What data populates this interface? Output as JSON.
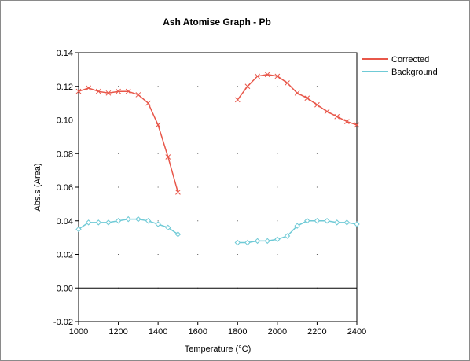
{
  "chart_data": {
    "type": "line",
    "title": "Ash Atomise Graph - Pb",
    "xlabel": "Temperature (°C)",
    "ylabel": "Abs.s (Area)",
    "xlim": [
      1000,
      2400
    ],
    "ylim": [
      -0.02,
      0.14
    ],
    "xticks": [
      1000,
      1200,
      1400,
      1600,
      1800,
      2000,
      2200,
      2400
    ],
    "xtick_labels": [
      "1000",
      "1200",
      "1400",
      "1600",
      "1800",
      "2000",
      "2200",
      "2400"
    ],
    "yticks": [
      -0.02,
      0,
      0.02,
      0.04,
      0.06,
      0.08,
      0.1,
      0.12,
      0.14
    ],
    "ytick_labels": [
      "-0.02",
      "0.00",
      "0.02",
      "0.04",
      "0.06",
      "0.08",
      "0.10",
      "0.12",
      "0.14"
    ],
    "grid": "dotted points",
    "legend_position": "right",
    "series": [
      {
        "name": "Corrected",
        "color": "#e8574a",
        "marker": "x",
        "segments": [
          {
            "x": [
              1000,
              1050,
              1100,
              1150,
              1200,
              1250,
              1300,
              1350,
              1400,
              1450,
              1500
            ],
            "y": [
              0.117,
              0.119,
              0.117,
              0.116,
              0.117,
              0.117,
              0.115,
              0.11,
              0.097,
              0.078,
              0.057
            ]
          },
          {
            "x": [
              1800,
              1850,
              1900,
              1950,
              2000,
              2050,
              2100,
              2150,
              2200,
              2250,
              2300,
              2350,
              2400
            ],
            "y": [
              0.112,
              0.12,
              0.126,
              0.127,
              0.126,
              0.122,
              0.116,
              0.113,
              0.109,
              0.105,
              0.102,
              0.099,
              0.097
            ]
          }
        ]
      },
      {
        "name": "Background",
        "color": "#6fcad6",
        "marker": "diamond",
        "segments": [
          {
            "x": [
              1000,
              1050,
              1100,
              1150,
              1200,
              1250,
              1300,
              1350,
              1400,
              1450,
              1500
            ],
            "y": [
              0.035,
              0.039,
              0.039,
              0.039,
              0.04,
              0.041,
              0.041,
              0.04,
              0.038,
              0.036,
              0.032
            ]
          },
          {
            "x": [
              1800,
              1850,
              1900,
              1950,
              2000,
              2050,
              2100,
              2150,
              2200,
              2250,
              2300,
              2350,
              2400
            ],
            "y": [
              0.027,
              0.027,
              0.028,
              0.028,
              0.029,
              0.031,
              0.037,
              0.04,
              0.04,
              0.04,
              0.039,
              0.039,
              0.038
            ]
          }
        ]
      }
    ]
  }
}
